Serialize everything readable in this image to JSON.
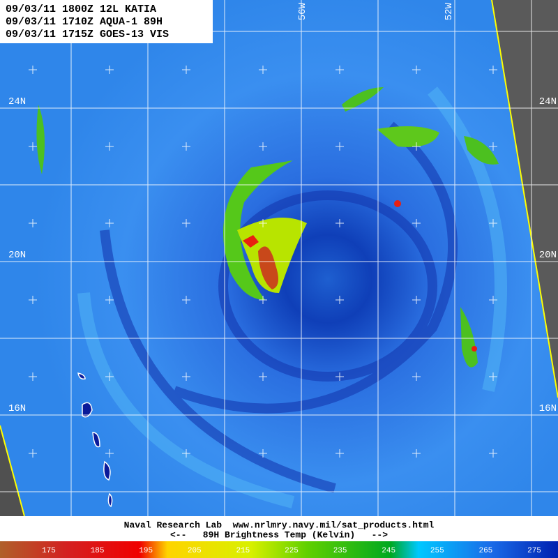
{
  "header": {
    "lines": [
      "09/03/11 1800Z 12L KATIA",
      "09/03/11 1710Z AQUA-1 89H",
      "09/03/11 1715Z GOES-13 VIS"
    ]
  },
  "grid_labels": {
    "latitude": [
      "24N",
      "20N",
      "16N"
    ],
    "longitude": [
      "56W",
      "52W"
    ]
  },
  "footer": {
    "credit": "Naval Research Lab  www.nrlmry.navy.mil/sat_products.html",
    "legend_title": "<--   89H Brightness Temp (Kelvin)   -->"
  },
  "colorbar": {
    "labels": [
      175,
      185,
      195,
      205,
      215,
      225,
      235,
      245,
      255,
      265,
      275
    ]
  }
}
